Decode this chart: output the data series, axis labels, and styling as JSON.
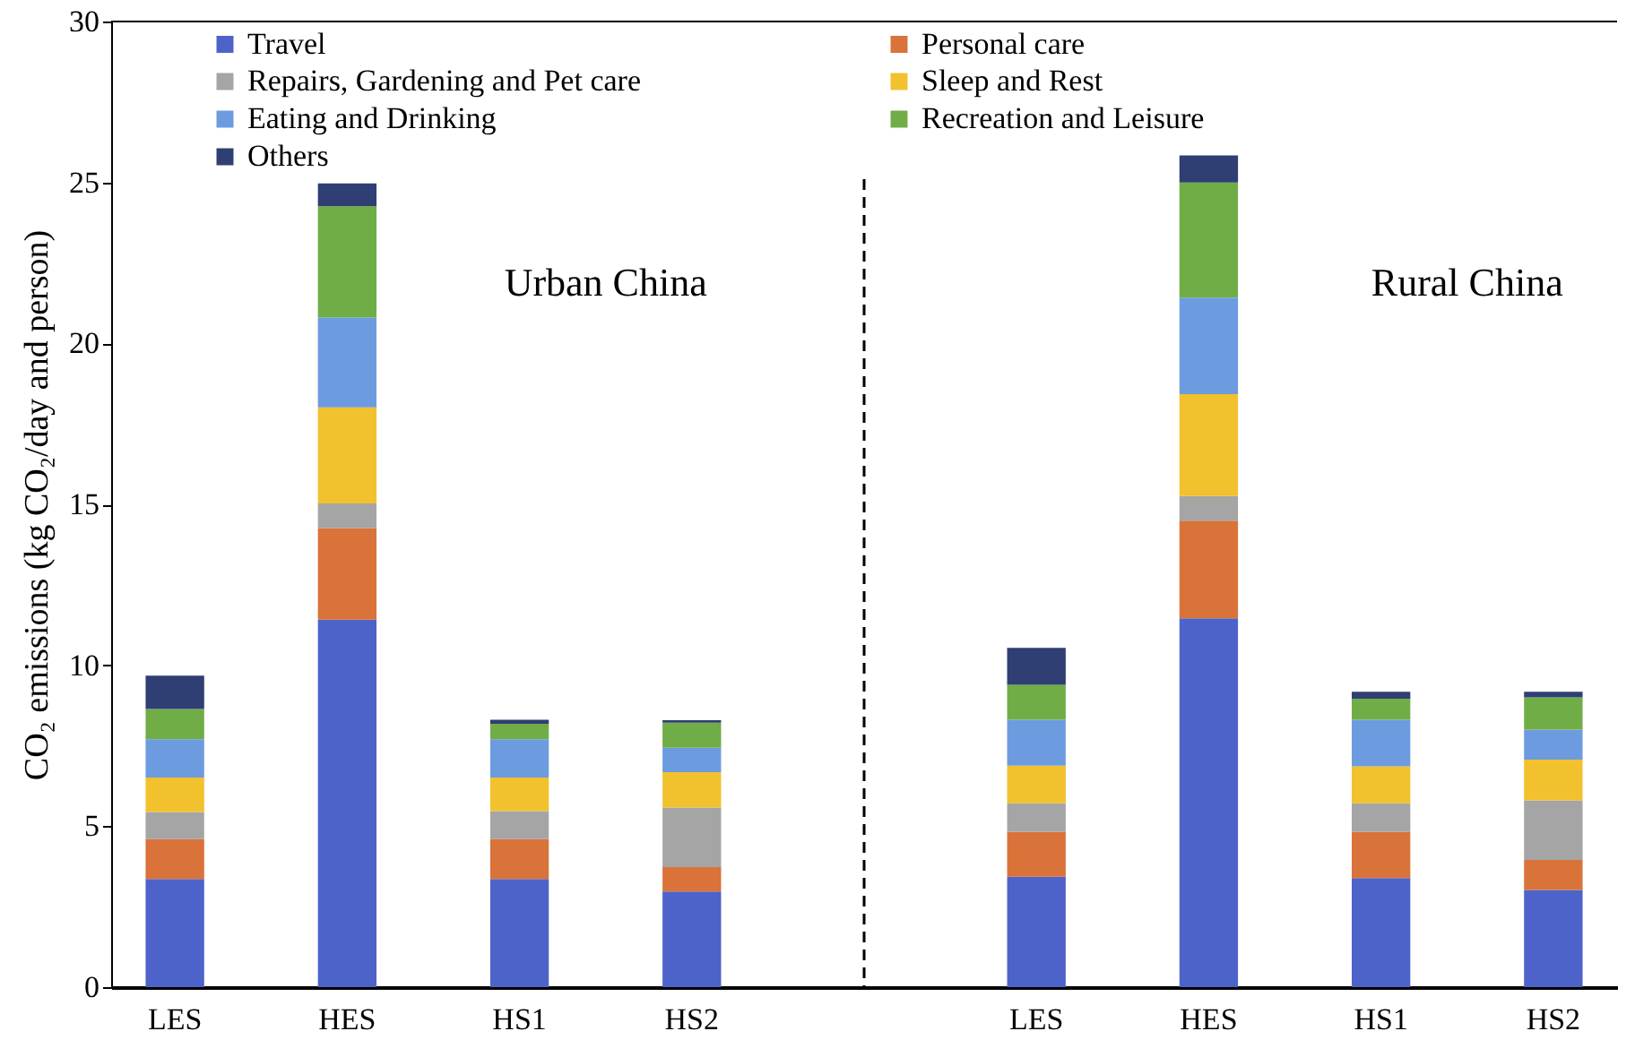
{
  "chart_data": {
    "type": "bar",
    "stacked": true,
    "ylabel": "CO₂ emissions (kg CO₂/day and person)",
    "categories": [
      "LES",
      "HES",
      "HS1",
      "HS2",
      null,
      "LES",
      "HES",
      "HS1",
      "HS2"
    ],
    "ylim": [
      0,
      30
    ],
    "yticks": [
      0,
      5,
      10,
      15,
      20,
      25,
      30
    ],
    "legend": "top",
    "series": [
      {
        "name": "Travel",
        "color": "#4e63c9",
        "values": [
          3.36,
          11.42,
          3.36,
          2.97,
          null,
          3.43,
          11.46,
          3.39,
          3.02
        ]
      },
      {
        "name": "Personal care",
        "color": "#d9733a",
        "values": [
          1.24,
          2.84,
          1.24,
          0.76,
          null,
          1.39,
          3.03,
          1.43,
          0.93
        ]
      },
      {
        "name": "Repairs, Gardening and Pet care",
        "color": "#a5a5a5",
        "values": [
          0.84,
          0.77,
          0.87,
          1.85,
          null,
          0.89,
          0.77,
          0.89,
          1.85
        ]
      },
      {
        "name": "Sleep and Rest",
        "color": "#f2c12e",
        "values": [
          1.07,
          2.98,
          1.04,
          1.1,
          null,
          1.17,
          3.16,
          1.15,
          1.27
        ]
      },
      {
        "name": "Eating and Drinking",
        "color": "#6d9be0",
        "values": [
          1.19,
          2.79,
          1.19,
          0.76,
          null,
          1.43,
          3.0,
          1.45,
          0.93
        ]
      },
      {
        "name": "Recreation and Leisure",
        "color": "#70ad47",
        "values": [
          0.94,
          3.46,
          0.48,
          0.78,
          null,
          1.08,
          3.58,
          0.65,
          1.0
        ]
      },
      {
        "name": "Others",
        "color": "#2f3f73",
        "values": [
          1.04,
          0.71,
          0.13,
          0.07,
          null,
          1.15,
          0.84,
          0.22,
          0.18
        ]
      }
    ],
    "ref_lines": [
      {
        "axis": "x",
        "value": null,
        "line_style": "dashed"
      }
    ],
    "annotations": [
      "Urban China",
      "Rural China"
    ]
  }
}
